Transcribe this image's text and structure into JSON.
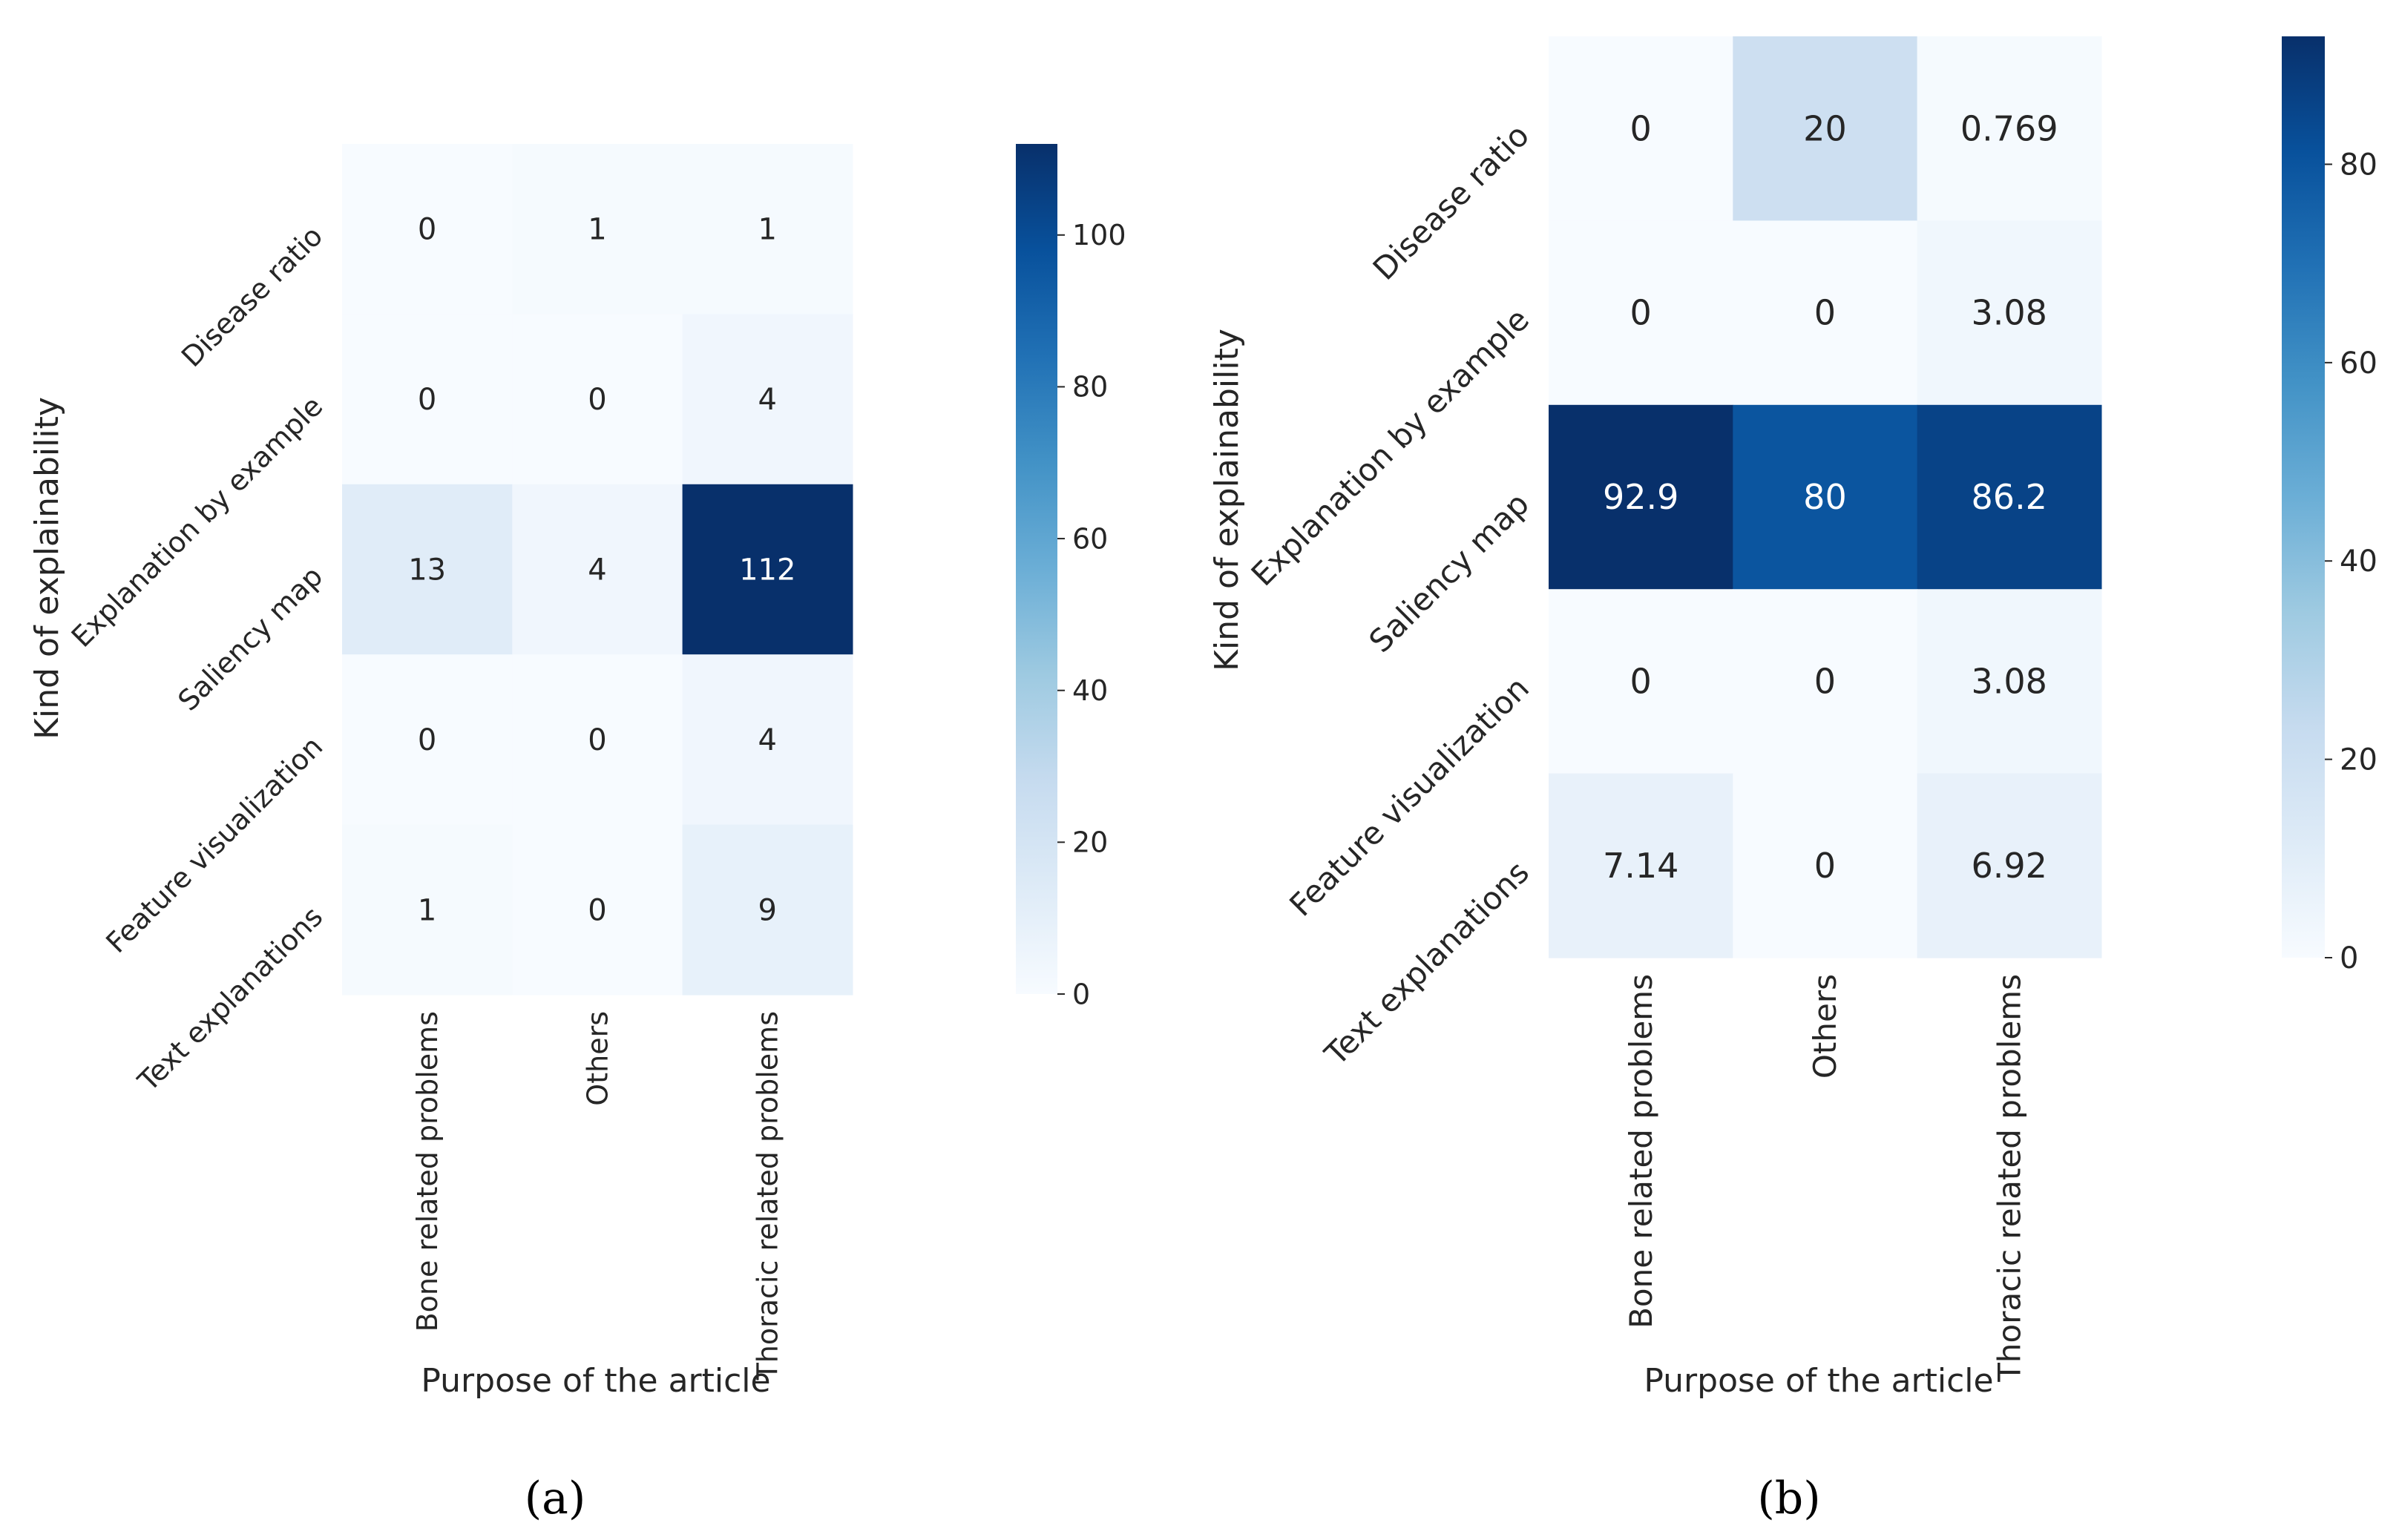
{
  "chart_data": [
    {
      "type": "heatmap",
      "panel_label": "(a)",
      "xlabel": "Purpose of the article",
      "ylabel": "Kind of explainability",
      "x_categories": [
        "Bone related problems",
        "Others",
        "Thoracic related problems"
      ],
      "y_categories": [
        "Disease ratio",
        "Explanation by example",
        "Saliency map",
        "Feature visualization",
        "Text explanations"
      ],
      "values": [
        [
          0,
          1,
          1
        ],
        [
          0,
          0,
          4
        ],
        [
          13,
          4,
          112
        ],
        [
          0,
          0,
          4
        ],
        [
          1,
          0,
          9
        ]
      ],
      "value_labels": [
        [
          "0",
          "1",
          "1"
        ],
        [
          "0",
          "0",
          "4"
        ],
        [
          "13",
          "4",
          "112"
        ],
        [
          "0",
          "0",
          "4"
        ],
        [
          "1",
          "0",
          "9"
        ]
      ],
      "colorbar": {
        "vmin": 0,
        "vmax": 112,
        "ticks": [
          0,
          20,
          40,
          60,
          80,
          100
        ],
        "tick_labels": [
          "0",
          "20",
          "40",
          "60",
          "80",
          "100"
        ]
      },
      "colormap": "Blues"
    },
    {
      "type": "heatmap",
      "panel_label": "(b)",
      "xlabel": "Purpose of the article",
      "ylabel": "Kind of explainability",
      "x_categories": [
        "Bone related problems",
        "Others",
        "Thoracic related problems"
      ],
      "y_categories": [
        "Disease ratio",
        "Explanation by example",
        "Saliency map",
        "Feature visualization",
        "Text explanations"
      ],
      "values": [
        [
          0,
          20,
          0.769
        ],
        [
          0,
          0,
          3.08
        ],
        [
          92.9,
          80,
          86.2
        ],
        [
          0,
          0,
          3.08
        ],
        [
          7.14,
          0,
          6.92
        ]
      ],
      "value_labels": [
        [
          "0",
          "20",
          "0.769"
        ],
        [
          "0",
          "0",
          "3.08"
        ],
        [
          "92.9",
          "80",
          "86.2"
        ],
        [
          "0",
          "0",
          "3.08"
        ],
        [
          "7.14",
          "0",
          "6.92"
        ]
      ],
      "colorbar": {
        "vmin": 0,
        "vmax": 92.9,
        "ticks": [
          0,
          20,
          40,
          60,
          80
        ],
        "tick_labels": [
          "0",
          "20",
          "40",
          "60",
          "80"
        ]
      },
      "colormap": "Blues"
    }
  ]
}
